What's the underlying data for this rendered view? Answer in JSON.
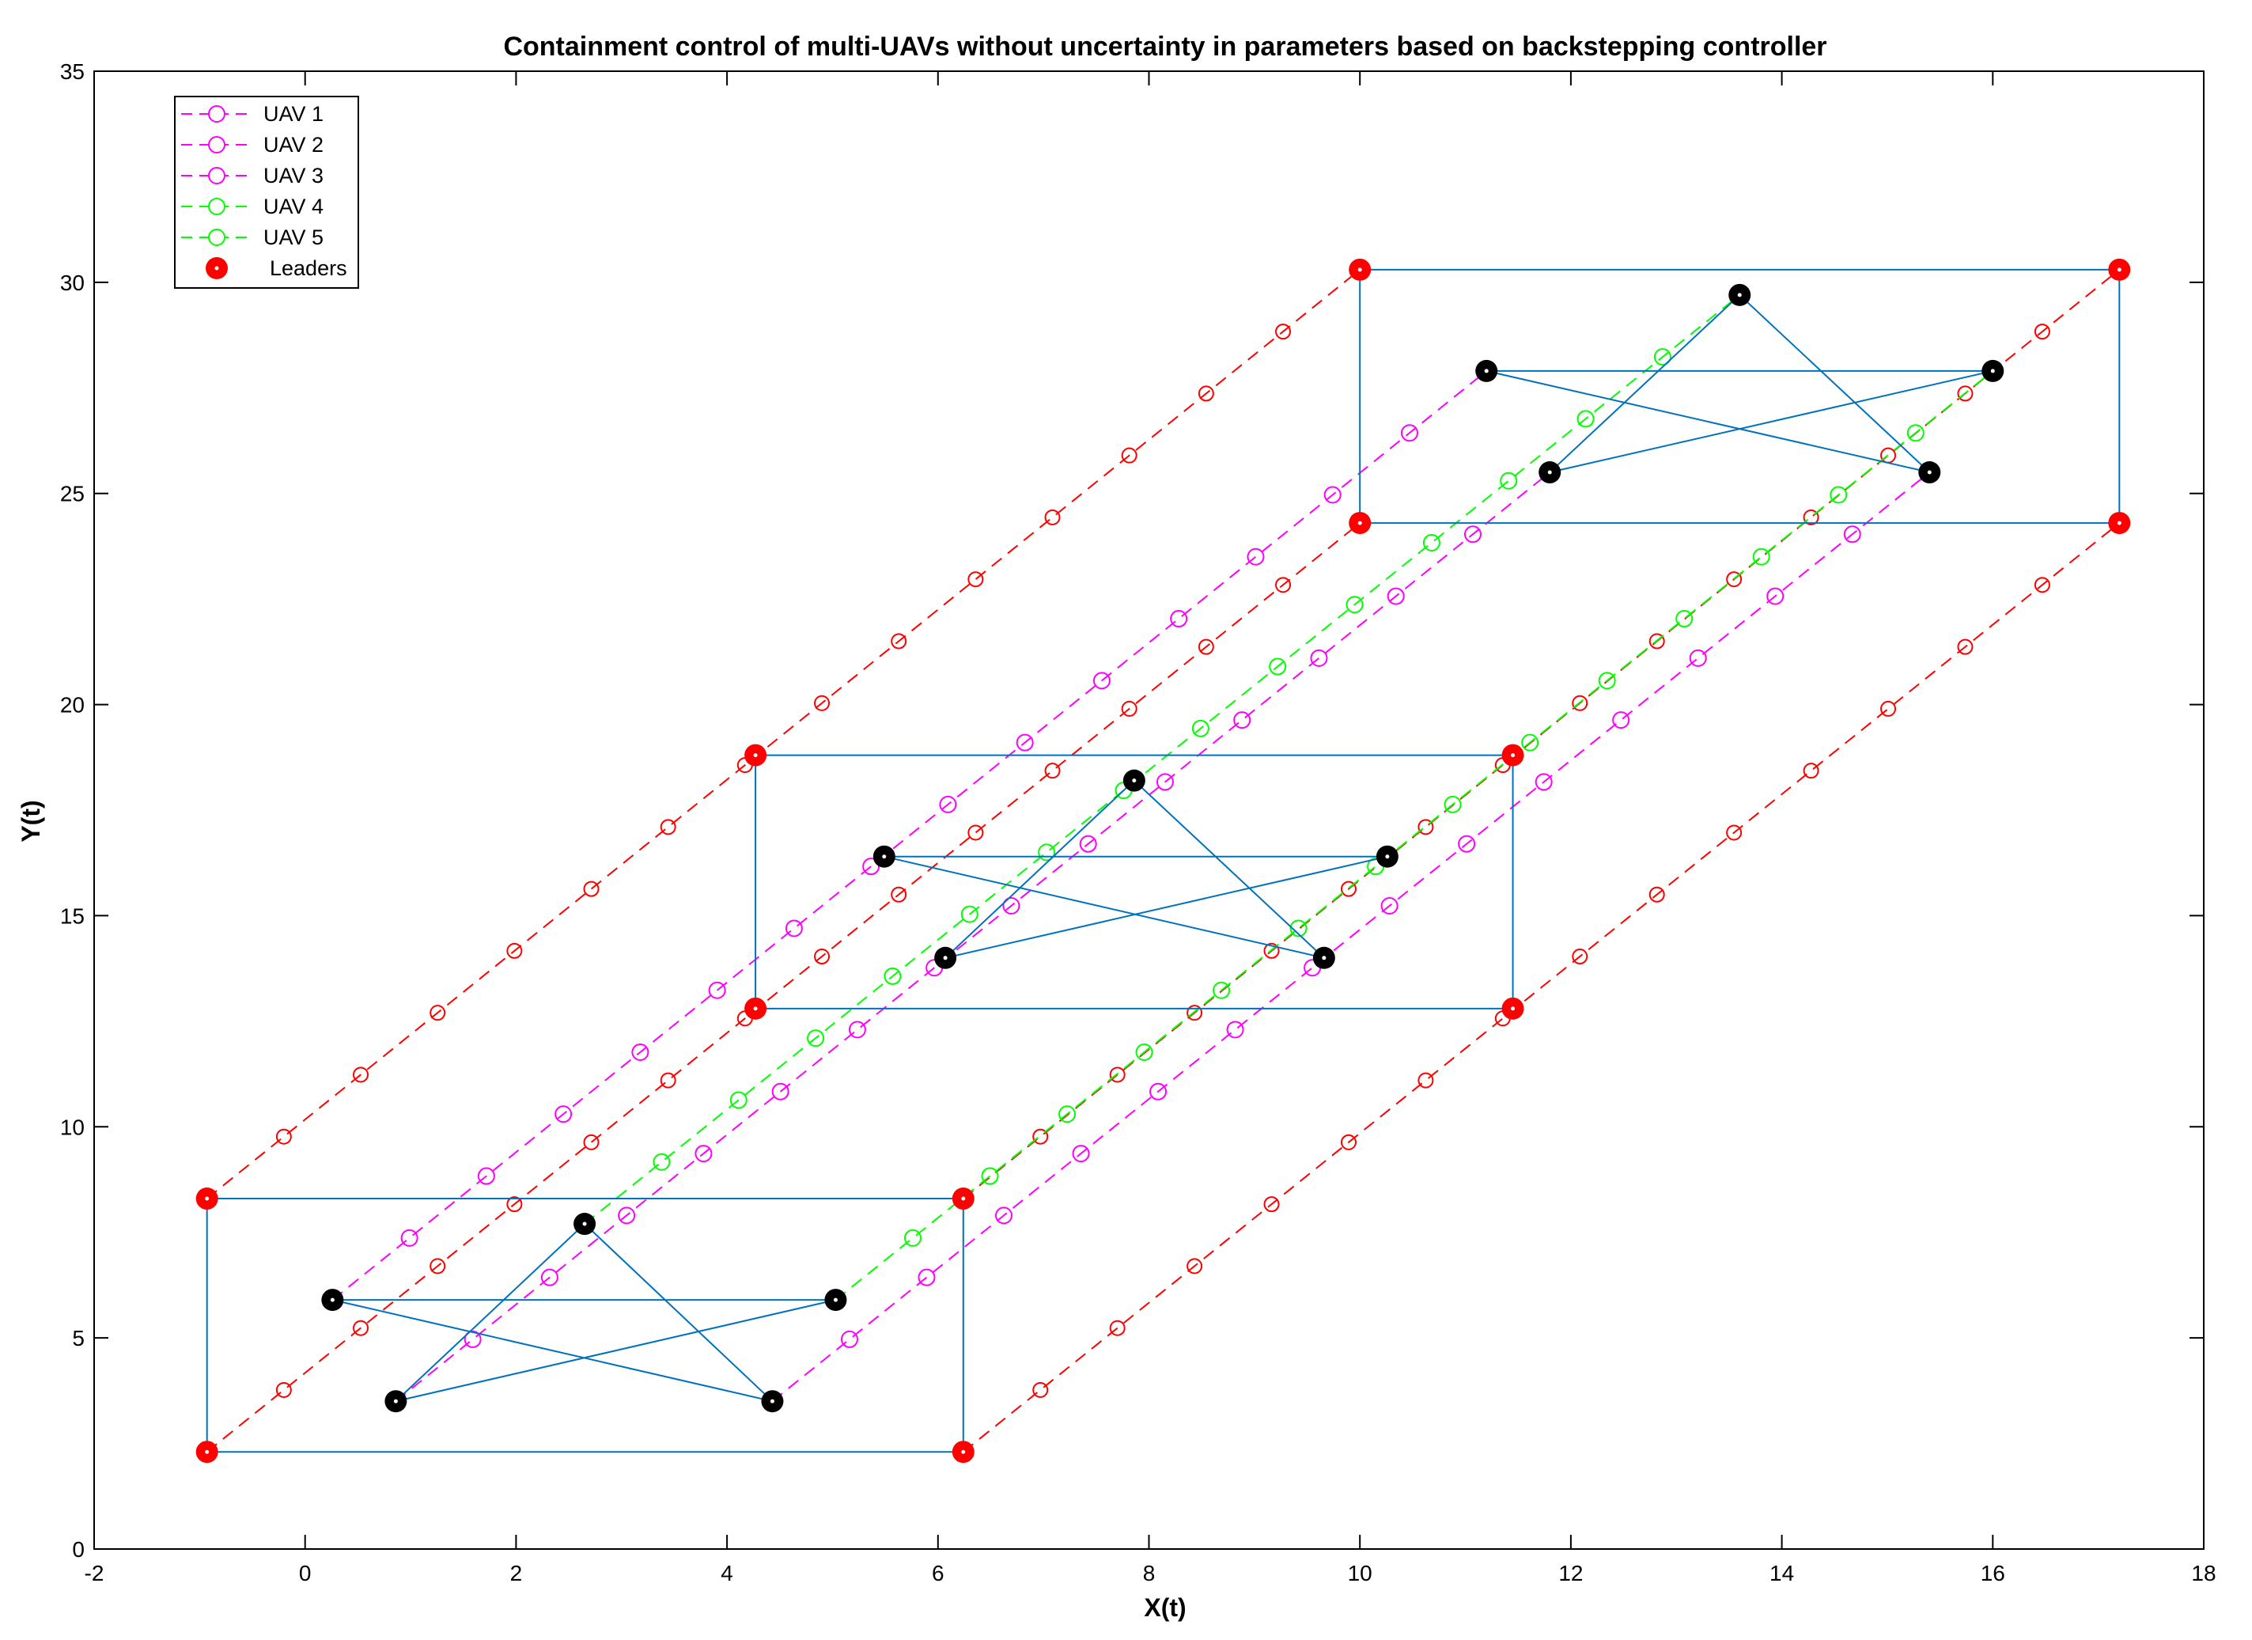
{
  "chart_data": {
    "type": "line",
    "title": "Containment control of multi-UAVs without uncertainty in parameters based on backstepping controller",
    "xlabel": "X(t)",
    "ylabel": "Y(t)",
    "xlim": [
      -2,
      18
    ],
    "ylim": [
      0,
      35
    ],
    "xticks": [
      -2,
      0,
      2,
      4,
      6,
      8,
      10,
      12,
      14,
      16,
      18
    ],
    "yticks": [
      0,
      5,
      10,
      15,
      20,
      25,
      30,
      35
    ],
    "grid": false,
    "legend_position": "top-left",
    "legend": [
      {
        "label": "UAV 1",
        "color": "#ff00ff",
        "marker": "circle-open",
        "line": "dashed"
      },
      {
        "label": "UAV 2",
        "color": "#ff00ff",
        "marker": "circle-open",
        "line": "dashed"
      },
      {
        "label": "UAV 3",
        "color": "#ff00ff",
        "marker": "circle-open",
        "line": "dashed"
      },
      {
        "label": "UAV 4",
        "color": "#00ff00",
        "marker": "circle-open",
        "line": "dashed"
      },
      {
        "label": "UAV 5",
        "color": "#00ff00",
        "marker": "circle-open",
        "line": "dashed"
      },
      {
        "label": "Leaders",
        "color": "#ff0000",
        "marker": "circle-filled",
        "line": "none"
      }
    ],
    "colors": {
      "follower_magenta": "#ff00ff",
      "follower_green": "#00ff00",
      "leader": "#ff0000",
      "formation": "#0072bd",
      "follower_marker": "#000000"
    },
    "leaders": [
      {
        "name": "Leader 1",
        "start": [
          -0.93,
          8.3
        ],
        "mid": [
          4.27,
          18.8
        ],
        "end": [
          10.0,
          30.3
        ]
      },
      {
        "name": "Leader 2",
        "start": [
          6.24,
          8.3
        ],
        "mid": [
          11.45,
          18.8
        ],
        "end": [
          17.2,
          30.3
        ]
      },
      {
        "name": "Leader 3",
        "start": [
          -0.93,
          2.3
        ],
        "mid": [
          4.27,
          12.8
        ],
        "end": [
          10.0,
          24.3
        ]
      },
      {
        "name": "Leader 4",
        "start": [
          6.24,
          2.3
        ],
        "mid": [
          11.45,
          12.8
        ],
        "end": [
          17.2,
          24.3
        ]
      }
    ],
    "followers": [
      {
        "name": "UAV 1",
        "start": [
          0.26,
          5.9
        ],
        "mid": [
          5.49,
          16.4
        ],
        "end": [
          11.2,
          27.9
        ]
      },
      {
        "name": "UAV 2",
        "start": [
          0.86,
          3.5
        ],
        "mid": [
          6.07,
          14.0
        ],
        "end": [
          11.8,
          25.5
        ]
      },
      {
        "name": "UAV 3",
        "start": [
          4.43,
          3.5
        ],
        "mid": [
          9.66,
          14.0
        ],
        "end": [
          15.4,
          25.5
        ]
      },
      {
        "name": "UAV 4",
        "start": [
          2.65,
          7.7
        ],
        "mid": [
          7.86,
          18.2
        ],
        "end": [
          13.6,
          29.7
        ]
      },
      {
        "name": "UAV 5",
        "start": [
          5.03,
          5.9
        ],
        "mid": [
          10.26,
          16.4
        ],
        "end": [
          16.0,
          27.9
        ]
      }
    ],
    "marker_spacing": 0.3
  }
}
